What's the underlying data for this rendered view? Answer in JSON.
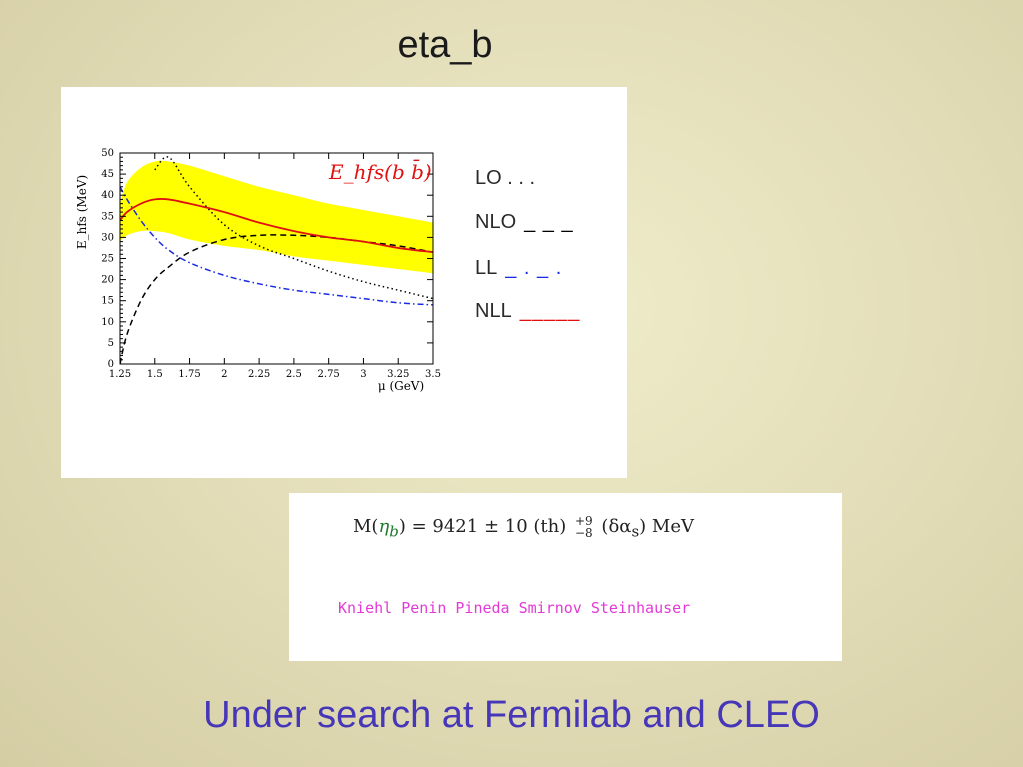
{
  "slide": {
    "title": "eta_b",
    "footer": "Under  search at Fermilab and CLEO"
  },
  "chart_data": {
    "type": "line",
    "xlabel": "μ (GeV)",
    "ylabel": "E_hfs (MeV)",
    "annotation": "E_hfs(b b̄)",
    "xlim": [
      1.25,
      3.5
    ],
    "ylim": [
      0,
      50
    ],
    "x_ticks": [
      "1.25",
      "1.5",
      "1.75",
      "2",
      "2.25",
      "2.5",
      "2.75",
      "3",
      "3.25",
      "3.5"
    ],
    "y_ticks": [
      "0",
      "5",
      "10",
      "15",
      "20",
      "25",
      "30",
      "35",
      "40",
      "45",
      "50"
    ],
    "x": [
      1.25,
      1.3,
      1.4,
      1.5,
      1.6,
      1.75,
      2.0,
      2.25,
      2.5,
      2.75,
      3.0,
      3.25,
      3.5
    ],
    "band": {
      "upper": [
        38,
        43,
        46.5,
        48,
        48,
        47,
        44.5,
        42,
        40,
        38,
        36.5,
        35,
        33.5
      ],
      "lower": [
        29,
        30.5,
        31.5,
        31.5,
        31,
        29.5,
        28,
        27,
        25.5,
        24.5,
        23.5,
        22.5,
        21.5
      ],
      "color": "#ffff00"
    },
    "series": [
      {
        "name": "LO",
        "style": "dotted",
        "color": "#000000",
        "values": [
          null,
          null,
          null,
          46,
          49,
          42,
          33,
          28,
          25,
          22,
          19.5,
          17.5,
          15.5
        ]
      },
      {
        "name": "NLO",
        "style": "dashed",
        "color": "#000000",
        "values": [
          0,
          7,
          15,
          20,
          23,
          26.5,
          29.5,
          30.5,
          30.5,
          30,
          29,
          28,
          26.5
        ]
      },
      {
        "name": "LL",
        "style": "dashdot",
        "color": "#1a2be0",
        "values": [
          42,
          39,
          34,
          30,
          27,
          24,
          21,
          19,
          17.5,
          16.5,
          15.5,
          14.5,
          14
        ]
      },
      {
        "name": "NLL",
        "style": "solid",
        "color": "#e01010",
        "values": [
          34,
          36,
          38,
          39,
          39,
          38,
          36,
          33.5,
          31.5,
          30,
          29,
          27.5,
          26.5
        ]
      }
    ],
    "legend": [
      {
        "label": "LO . . .",
        "line": "",
        "color": "#000000"
      },
      {
        "label": "NLO",
        "line": "_ _ _",
        "color": "#000000"
      },
      {
        "label": "LL",
        "line": "_ . _ .",
        "color": "#1a2be0"
      },
      {
        "label": "NLL",
        "line": "_____",
        "color": "#e01010"
      }
    ]
  },
  "formula": {
    "lhs": "M(",
    "eta": "η",
    "eta_sub": "b",
    "rhs": ") = 9421 ± 10 (th)",
    "sup": "+9",
    "sub": "−8",
    "tail": "(δα",
    "tail_sub": "s",
    "tail_end": ") MeV",
    "authors": "Kniehl Penin Pineda Smirnov Steinhauser"
  }
}
